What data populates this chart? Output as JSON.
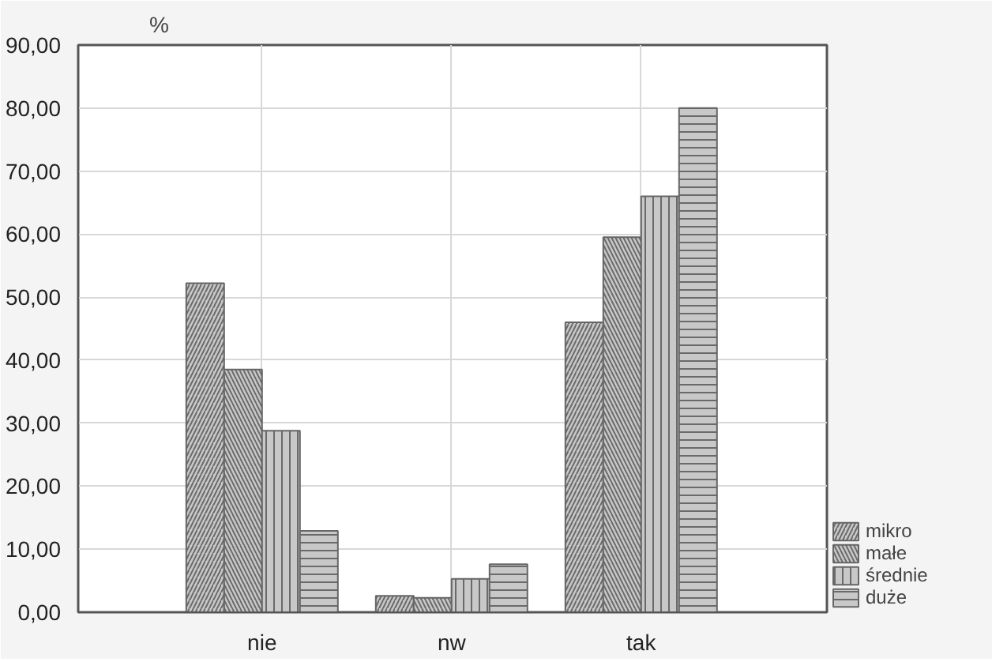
{
  "chart_data": {
    "type": "bar",
    "ylabel": "%",
    "categories": [
      "nie",
      "nw",
      "tak"
    ],
    "series": [
      {
        "name": "mikro",
        "color": "#c8c8c8",
        "values": [
          52.2,
          2.6,
          46.0
        ]
      },
      {
        "name": "małe",
        "color": "#c8c8c8",
        "values": [
          38.5,
          2.3,
          59.5
        ]
      },
      {
        "name": "średnie",
        "color": "#c8c8c8",
        "values": [
          28.8,
          5.3,
          66.0
        ]
      },
      {
        "name": "duże",
        "color": "#c8c8c8",
        "values": [
          12.9,
          7.6,
          80.0
        ]
      }
    ],
    "ylim": [
      0,
      90
    ],
    "yticks": [
      {
        "value": 0,
        "label": "0,00"
      },
      {
        "value": 10,
        "label": "10,00"
      },
      {
        "value": 20,
        "label": "20,00"
      },
      {
        "value": 30,
        "label": "30,00"
      },
      {
        "value": 40,
        "label": "40,00"
      },
      {
        "value": 50,
        "label": "50,00"
      },
      {
        "value": 60,
        "label": "60,00"
      },
      {
        "value": 70,
        "label": "70,00"
      },
      {
        "value": 80,
        "label": "80,00"
      },
      {
        "value": 90,
        "label": "90,00"
      }
    ],
    "grid": true,
    "legend": "bottom right"
  }
}
